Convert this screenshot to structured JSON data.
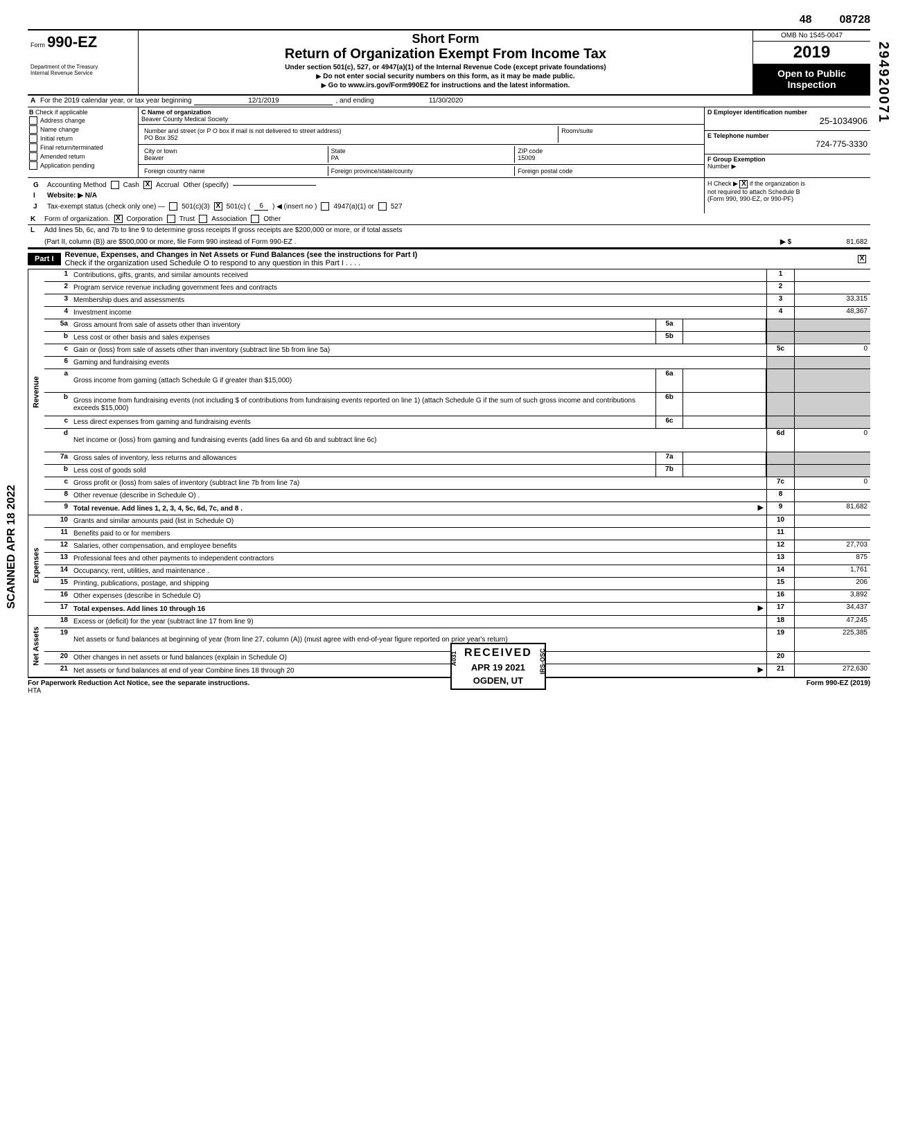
{
  "top": {
    "seq1": "48",
    "seq2": "08728"
  },
  "vert_right": "294920071",
  "scanned": "SCANNED APR 18 2022",
  "header": {
    "form_prefix": "Form",
    "form_number": "990-EZ",
    "dept": "Department of the Treasury\nInternal Revenue Service",
    "title1": "Short Form",
    "title2": "Return of Organization Exempt From Income Tax",
    "sub1": "Under section 501(c), 527, or 4947(a)(1) of the Internal Revenue Code (except private foundations)",
    "sub2": "Do not enter social security numbers on this form, as it may be made public.",
    "sub3": "Go to www.irs.gov/Form990EZ for instructions and the latest information.",
    "omb": "OMB No 1545-0047",
    "year": "2019",
    "open1": "Open to Public",
    "open2": "Inspection"
  },
  "line_a": {
    "label": "A",
    "text": "For the 2019 calendar year, or tax year beginning",
    "begin": "12/1/2019",
    "mid": ", and ending",
    "end": "11/30/2020"
  },
  "b": {
    "label": "B",
    "check_label": "Check if applicable",
    "items": [
      "Address change",
      "Name change",
      "Initial return",
      "Final return/terminated",
      "Amended return",
      "Application pending"
    ],
    "c_label": "C  Name of organization",
    "c_name": "Beaver County Medical Society",
    "street_label": "Number and street (or P O  box if mail is not delivered to street address)",
    "room_label": "Room/suite",
    "street": "PO Box 352",
    "city_label": "City or town",
    "state_label": "State",
    "zip_label": "ZIP code",
    "city": "Beaver",
    "state": "PA",
    "zip": "15009",
    "fc_label": "Foreign country name",
    "fp_label": "Foreign province/state/county",
    "fpc_label": "Foreign postal code",
    "d_label": "D  Employer identification number",
    "d_val": "25-1034906",
    "e_label": "E  Telephone number",
    "e_val": "724-775-3330",
    "f_label": "F  Group Exemption",
    "f_label2": "Number ▶"
  },
  "g": {
    "lbl": "G",
    "text": "Accounting Method",
    "cash": "Cash",
    "accrual": "Accrual",
    "other": "Other (specify)"
  },
  "h": {
    "text1": "H  Check ▶",
    "text2": "if the organization is",
    "text3": "not required to attach Schedule B",
    "text4": "(Form 990, 990-EZ, or 990-PF)"
  },
  "i": {
    "lbl": "I",
    "text": "Website: ▶ N/A"
  },
  "j": {
    "lbl": "J",
    "text": "Tax-exempt status (check only one) —",
    "c3": "501(c)(3)",
    "c": "501(c) (",
    "cnum": "6",
    "cins": ") ◀ (insert no )",
    "a1": "4947(a)(1) or",
    "s527": "527"
  },
  "k": {
    "lbl": "K",
    "text": "Form of organization.",
    "corp": "Corporation",
    "trust": "Trust",
    "assoc": "Association",
    "other": "Other"
  },
  "l": {
    "lbl": "L",
    "text1": "Add lines 5b, 6c, and 7b to line 9 to determine gross receipts  If gross receipts are $200,000 or more, or if total assets",
    "text2": "(Part II, column (B)) are $500,000 or more, file Form 990 instead of Form 990-EZ  .",
    "arrow": "▶ $",
    "val": "81,682"
  },
  "part1": {
    "tag": "Part I",
    "title": "Revenue, Expenses, and Changes in Net Assets or Fund Balances (see the instructions for Part I)",
    "sub": "Check if the organization used Schedule O to respond to any question in this Part I .  .  .  .",
    "sub_chk": true
  },
  "sections": {
    "revenue": "Revenue",
    "expenses": "Expenses",
    "netassets": "Net Assets"
  },
  "rows": [
    {
      "n": "1",
      "d": "Contributions, gifts, grants, and similar amounts received",
      "rn": "1",
      "rv": ""
    },
    {
      "n": "2",
      "d": "Program service revenue including government fees and contracts",
      "rn": "2",
      "rv": ""
    },
    {
      "n": "3",
      "d": "Membership dues and assessments",
      "rn": "3",
      "rv": "33,315"
    },
    {
      "n": "4",
      "d": "Investment income",
      "rn": "4",
      "rv": "48,367"
    },
    {
      "n": "5a",
      "d": "Gross amount from sale of assets other than inventory",
      "mn": "5a",
      "shade": true
    },
    {
      "n": "b",
      "d": "Less  cost or other basis and sales expenses",
      "mn": "5b",
      "shade": true
    },
    {
      "n": "c",
      "d": "Gain or (loss) from sale of assets other than inventory (subtract line 5b from line 5a)",
      "rn": "5c",
      "rv": "0"
    },
    {
      "n": "6",
      "d": "Gaming and fundraising events",
      "shade": true
    },
    {
      "n": "a",
      "d": "Gross income from gaming (attach Schedule G if greater than $15,000)",
      "mn": "6a",
      "shade": true,
      "tall": true
    },
    {
      "n": "b",
      "d": "Gross income from fundraising events (not including    $               of contributions from fundraising events reported on line 1) (attach Schedule G if the sum of such gross income and contributions exceeds $15,000)",
      "mn": "6b",
      "shade": true,
      "tall": true
    },
    {
      "n": "c",
      "d": "Less  direct expenses from gaming and fundraising events",
      "mn": "6c",
      "shade": true
    },
    {
      "n": "d",
      "d": "Net income or (loss) from gaming and fundraising events (add lines 6a and 6b and subtract line 6c)",
      "rn": "6d",
      "rv": "0",
      "tall": true
    },
    {
      "n": "7a",
      "d": "Gross sales of inventory, less returns and allowances",
      "mn": "7a",
      "shade": true
    },
    {
      "n": "b",
      "d": "Less  cost of goods sold",
      "mn": "7b",
      "shade": true
    },
    {
      "n": "c",
      "d": "Gross profit or (loss) from sales of inventory (subtract line 7b from line 7a)",
      "rn": "7c",
      "rv": "0"
    },
    {
      "n": "8",
      "d": "Other revenue (describe in Schedule O) .",
      "rn": "8",
      "rv": ""
    },
    {
      "n": "9",
      "d": "Total revenue. Add lines 1, 2, 3, 4, 5c, 6d, 7c, and 8 .",
      "rn": "9",
      "rv": "81,682",
      "bold": true,
      "arrow": true
    }
  ],
  "exp_rows": [
    {
      "n": "10",
      "d": "Grants and similar amounts paid (list in Schedule O)",
      "rn": "10",
      "rv": ""
    },
    {
      "n": "11",
      "d": "Benefits paid to or for members",
      "rn": "11",
      "rv": ""
    },
    {
      "n": "12",
      "d": "Salaries, other compensation, and employee benefits",
      "rn": "12",
      "rv": "27,703"
    },
    {
      "n": "13",
      "d": "Professional fees and other payments to independent contractors",
      "rn": "13",
      "rv": "875"
    },
    {
      "n": "14",
      "d": "Occupancy, rent, utilities, and maintenance .",
      "rn": "14",
      "rv": "1,761"
    },
    {
      "n": "15",
      "d": "Printing, publications, postage, and shipping",
      "rn": "15",
      "rv": "206"
    },
    {
      "n": "16",
      "d": "Other expenses (describe in Schedule O)",
      "rn": "16",
      "rv": "3,892"
    },
    {
      "n": "17",
      "d": "Total expenses. Add lines 10 through 16",
      "rn": "17",
      "rv": "34,437",
      "bold": true,
      "arrow": true
    }
  ],
  "na_rows": [
    {
      "n": "18",
      "d": "Excess or (deficit) for the year (subtract line 17 from line 9)",
      "rn": "18",
      "rv": "47,245"
    },
    {
      "n": "19",
      "d": "Net assets or fund balances at beginning of year (from line 27, column (A)) (must agree with end-of-year figure reported on prior year's return)",
      "rn": "19",
      "rv": "225,385",
      "tall": true
    },
    {
      "n": "20",
      "d": "Other changes in net assets or fund balances (explain in Schedule O)",
      "rn": "20",
      "rv": ""
    },
    {
      "n": "21",
      "d": "Net assets or fund balances at end of year  Combine lines 18 through 20",
      "rn": "21",
      "rv": "272,630",
      "arrow": true
    }
  ],
  "stamp": {
    "l1": "RECEIVED",
    "l2": "APR 19 2021",
    "l3": "OGDEN, UT",
    "side1": "A031",
    "side2": "IRS-OSC"
  },
  "footer": {
    "left": "For Paperwork Reduction Act Notice, see the separate instructions.",
    "hta": "HTA",
    "right": "Form 990-EZ (2019)"
  }
}
